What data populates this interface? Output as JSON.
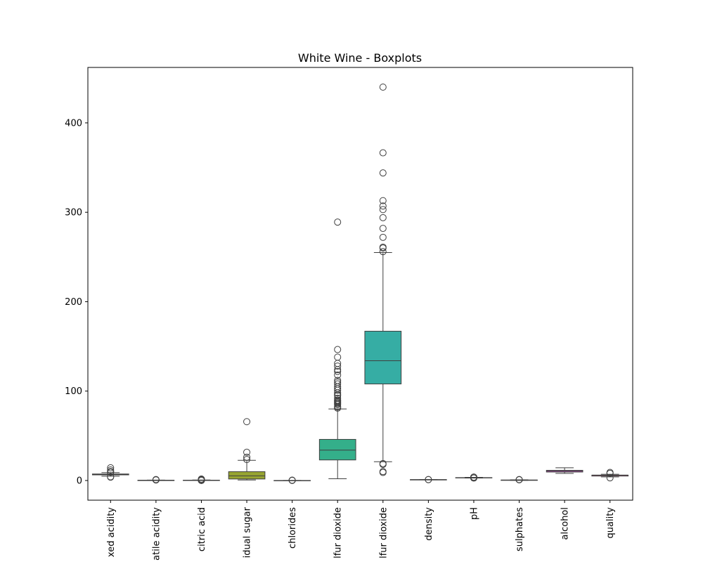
{
  "chart_data": {
    "type": "box",
    "title": "White Wine - Boxplots",
    "categories": [
      "xed acidity",
      "atile acidity",
      "citric acid",
      "idual sugar",
      "chlorides",
      "lfur dioxide",
      "lfur dioxide",
      "density",
      "pH",
      "sulphates",
      "alcohol",
      "quality"
    ],
    "colors": [
      "#f77189",
      "#e68332",
      "#bb9832",
      "#97a431",
      "#50b131",
      "#34af8a",
      "#36ada4",
      "#38a9c5",
      "#6e9bf4",
      "#cc7af4",
      "#f45cf2",
      "#f66bad"
    ],
    "boxes": [
      {
        "whislo": 4.8,
        "q1": 6.3,
        "med": 6.8,
        "q3": 7.3,
        "whishi": 8.8,
        "fliers": [
          3.8,
          4.2,
          9.2,
          10,
          11.8,
          14.2
        ]
      },
      {
        "whislo": 0.08,
        "q1": 0.21,
        "med": 0.26,
        "q3": 0.32,
        "whishi": 0.485,
        "fliers": [
          0.6,
          0.8,
          1.1
        ]
      },
      {
        "whislo": 0.11,
        "q1": 0.27,
        "med": 0.32,
        "q3": 0.39,
        "whishi": 0.57,
        "fliers": [
          0,
          0.8,
          1,
          1.66
        ]
      },
      {
        "whislo": 0.6,
        "q1": 1.7,
        "med": 5.2,
        "q3": 9.9,
        "whishi": 22.6,
        "fliers": [
          23.5,
          26.05,
          31.6,
          65.8
        ]
      },
      {
        "whislo": 0.009,
        "q1": 0.036,
        "med": 0.043,
        "q3": 0.05,
        "whishi": 0.071,
        "fliers": [
          0.1,
          0.2,
          0.346
        ]
      },
      {
        "whislo": 2,
        "q1": 23,
        "med": 34,
        "q3": 46,
        "whishi": 80,
        "fliers": [
          81,
          82,
          83,
          85,
          86,
          87,
          88,
          89,
          90,
          92,
          95,
          96,
          98,
          101,
          103,
          105,
          108,
          110,
          112,
          118,
          122,
          124,
          128,
          131,
          138,
          146.5,
          289
        ]
      },
      {
        "whislo": 21,
        "q1": 108,
        "med": 134,
        "q3": 167,
        "whishi": 255,
        "fliers": [
          9,
          10,
          18,
          19,
          256,
          260,
          261,
          272,
          282,
          294,
          303,
          307,
          313,
          344,
          366.5,
          440
        ]
      },
      {
        "whislo": 0.987,
        "q1": 0.9917,
        "med": 0.9937,
        "q3": 0.9961,
        "whishi": 1.0027,
        "fliers": [
          1.0103,
          1.039
        ]
      },
      {
        "whislo": 2.79,
        "q1": 3.09,
        "med": 3.18,
        "q3": 3.28,
        "whishi": 3.57,
        "fliers": [
          2.72,
          3.6,
          3.7,
          3.82
        ]
      },
      {
        "whislo": 0.22,
        "q1": 0.41,
        "med": 0.47,
        "q3": 0.55,
        "whishi": 0.76,
        "fliers": [
          0.8,
          0.9,
          1.08
        ]
      },
      {
        "whislo": 8,
        "q1": 9.5,
        "med": 10.4,
        "q3": 11.4,
        "whishi": 14.2,
        "fliers": []
      },
      {
        "whislo": 4,
        "q1": 5,
        "med": 6,
        "q3": 6,
        "whishi": 7,
        "fliers": [
          3,
          8,
          9
        ]
      }
    ],
    "ylim": [
      -22,
      462
    ],
    "yticks": [
      0,
      100,
      200,
      300,
      400
    ]
  }
}
